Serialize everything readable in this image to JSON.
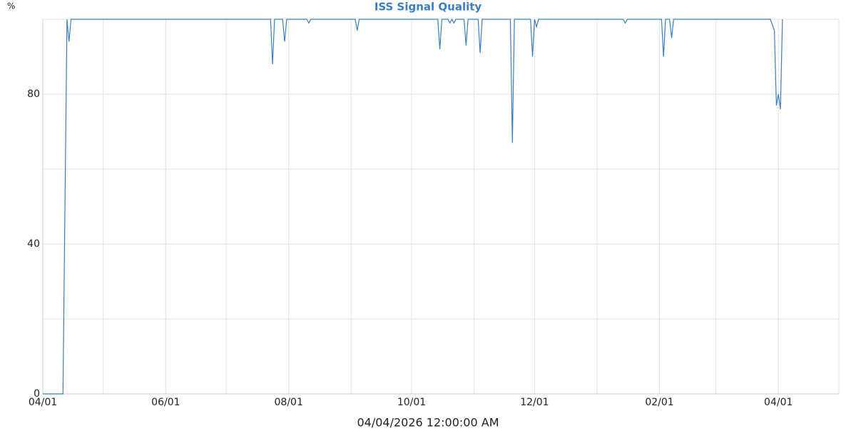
{
  "chart_data": {
    "type": "line",
    "title": "ISS Signal Quality",
    "y_label": "%",
    "x_label": "04/04/2026 12:00:00 AM",
    "x": [
      0,
      10,
      12,
      13,
      14,
      113,
      114,
      115,
      119,
      120,
      121,
      131,
      132,
      133,
      155,
      156,
      157,
      196,
      197,
      198,
      201,
      202,
      203,
      204,
      205,
      209,
      210,
      211,
      216,
      217,
      218,
      232,
      233,
      234,
      242,
      243,
      244,
      245,
      246,
      288,
      289,
      290,
      307,
      308,
      309,
      311,
      312,
      313,
      361,
      363,
      364,
      365,
      366,
      367
    ],
    "series": [
      {
        "name": "ISS Signal Quality",
        "color": "#3a7ebf",
        "values": [
          0,
          0,
          100,
          94,
          100,
          100,
          88,
          100,
          100,
          94,
          100,
          100,
          99,
          100,
          100,
          97,
          100,
          100,
          92,
          100,
          100,
          99,
          100,
          99,
          100,
          100,
          93,
          100,
          100,
          91,
          100,
          100,
          67,
          100,
          100,
          90,
          100,
          98,
          100,
          100,
          99,
          100,
          100,
          90,
          100,
          100,
          95,
          100,
          100,
          97,
          77,
          80,
          76,
          100
        ]
      }
    ],
    "xlim": [
      0,
      395
    ],
    "xticks": [
      {
        "value": 0,
        "label": "04/01"
      },
      {
        "value": 61,
        "label": "06/01"
      },
      {
        "value": 122,
        "label": "08/01"
      },
      {
        "value": 183,
        "label": "10/01"
      },
      {
        "value": 244,
        "label": "12/01"
      },
      {
        "value": 306,
        "label": "02/01"
      },
      {
        "value": 365,
        "label": "04/01"
      }
    ],
    "xgrid_minor": [
      30,
      91,
      153,
      214,
      275,
      334
    ],
    "ylim": [
      0,
      100
    ],
    "yticks": [
      0,
      40,
      80
    ],
    "ygrid_minor": [
      20,
      60,
      100
    ],
    "grid": true
  }
}
